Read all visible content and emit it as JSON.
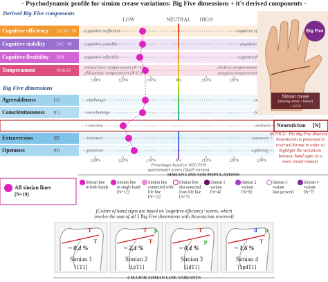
{
  "title": "- Psychodynamic profile for simian crease variations: Big Five dimensions + it's derived components -",
  "chart_data": {
    "type": "dot",
    "section_titles": [
      "Derived Big Five components",
      "Big Five dimensions"
    ],
    "scale_words": [
      "LOW",
      "NEUTRAL",
      "HIGH"
    ],
    "rows": [
      {
        "label": "Cognitive efficiency",
        "code": "[ACE0 - N]",
        "color": "#f29a30",
        "low": [
          "cognitive inefficient -"
        ],
        "high": [
          "cognitive efficient +"
        ]
      },
      {
        "label": "Cognitive stability",
        "code": "[AC - N]",
        "color": "#9a6fd0",
        "low": [
          "cognitive unstable -"
        ],
        "high": [
          "cognitive stable +"
        ]
      },
      {
        "label": "Cognitive flexibility",
        "code": "[E0]",
        "color": "#d266d6",
        "low": [
          "cognitive inflexible -"
        ],
        "high": [
          "cognitive flexible +"
        ]
      },
      {
        "label": "Temperament",
        "code": "[N & E]",
        "color": "#dd4f7c",
        "low": [
          "melancholic temperament (N+E-)",
          "phlegmatic temperament (N-E-)"
        ],
        "high": [
          "choleric temperament (N+E+)",
          "sanguine temperament (N-E+)"
        ]
      },
      {
        "label": "Agreeableness",
        "code": "[A]",
        "color": "#9fd3ee",
        "low": [
          "- challenger"
        ],
        "high": [
          "adapter +"
        ]
      },
      {
        "label": "Consciëntiousness",
        "code": "[C]",
        "color": "#b6def2",
        "low": [
          "- nonchalange"
        ],
        "high": [
          "focused +"
        ]
      },
      {
        "label": "Neuroticism",
        "code": "[N]",
        "color": "#ffffff",
        "low": [
          "+ reactive"
        ],
        "high": [
          "resilient -"
        ]
      },
      {
        "label": "Extraversion",
        "code": "[E]",
        "color": "#7fc4e8",
        "low": [
          "- introvert"
        ],
        "high": [
          "extravert +"
        ]
      },
      {
        "label": "Openness",
        "code": "[O]",
        "color": "#a9d8f0",
        "low": [
          "- preserver"
        ],
        "high": [
          "exploring +"
        ]
      }
    ],
    "series": [
      {
        "name": "All simian lines",
        "n": "[N=19]",
        "color": "#e020c0",
        "values": [
          -13,
          -13,
          -14,
          -12,
          -12,
          -13,
          -20,
          -18,
          -16
        ]
      }
    ],
    "xlim": [
      -35,
      35
    ],
    "xticks": [
      {
        "value": -30,
        "label": "±30%"
      },
      {
        "value": -20,
        "label": "±20%"
      },
      {
        "value": -10,
        "label": "±10%"
      },
      {
        "value": 0,
        "label": "0%"
      },
      {
        "value": 10,
        "label": "±10%"
      },
      {
        "value": 20,
        "label": "±20%"
      },
      {
        "value": 30,
        "label": "±30%"
      }
    ],
    "source": [
      "Percentages based on NEO PI-R",
      "questionnaire scores (Dutch version)"
    ]
  },
  "notice": [
    "NOTICE: The Big Five dimension",
    "Neuroticism is presented in",
    "reversed format in order to",
    "highlight the variations",
    "between hand signs in a",
    "more visual manner"
  ],
  "photo": {
    "badge": "Big Five",
    "caption": [
      "Simian crease",
      "(missing crease + fusion)",
      "~ 4,5 %"
    ]
  },
  "legend": {
    "title": "SIMIAN LINE SUB-POPULATIONS",
    "items": [
      {
        "lines": [
          "Simian line",
          "in both hands"
        ],
        "color": "#e020c0",
        "fill": true
      },
      {
        "lines": [
          "Simian line",
          "in single hand",
          "[N=12]"
        ],
        "color": "#e020c0",
        "fill": true
      },
      {
        "lines": [
          "Simian line",
          "connected with",
          "life line",
          "[N=12]"
        ],
        "color": "#f08ad8",
        "fill": true
      },
      {
        "lines": [
          "Simian line",
          "disconnected",
          "from life line",
          "[N=7]"
        ],
        "color": "#e020c0",
        "fill": false
      },
      {
        "lines": [
          "Simian 1",
          "variant",
          "[N=4]"
        ],
        "color": "#6a1060",
        "fill": true
      },
      {
        "lines": [
          "Simian 2",
          "variant",
          "[N=8]"
        ],
        "color": "#a040c0",
        "fill": true
      },
      {
        "lines": [
          "Simian 3",
          "variant",
          "[not present]"
        ],
        "color": "#c080d0",
        "fill": false
      },
      {
        "lines": [
          "Simian 4",
          "variant",
          "[N=7]"
        ],
        "color": "#8030a0",
        "fill": true
      }
    ]
  },
  "note": [
    "(Colors of hand signs are based on 'cognitive efficiency' scores, which",
    "involve the sum of all 5 Big Five dimensions with Neuroticism reversed)"
  ],
  "variants": {
    "title": "4 MAJOR SIMIAN LINE VARIANTS",
    "panels": [
      {
        "pct": "~ 0,4 %",
        "name": "Simian 1",
        "code": "[1T1]",
        "letters": [
          "T",
          "T"
        ]
      },
      {
        "pct": "~ 2,4 %",
        "name": "Simian 2",
        "code": "[1pT1]",
        "letters": [
          "T",
          "T",
          "p"
        ]
      },
      {
        "pct": "~ 0,4 %",
        "name": "Simian 3",
        "code": "[1dT1]",
        "letters": [
          "T",
          "p"
        ]
      },
      {
        "pct": "~ 1,6 %",
        "name": "Simian 4",
        "code": "[1pdT1]",
        "letters": [
          "d",
          "T",
          "p"
        ]
      }
    ]
  }
}
